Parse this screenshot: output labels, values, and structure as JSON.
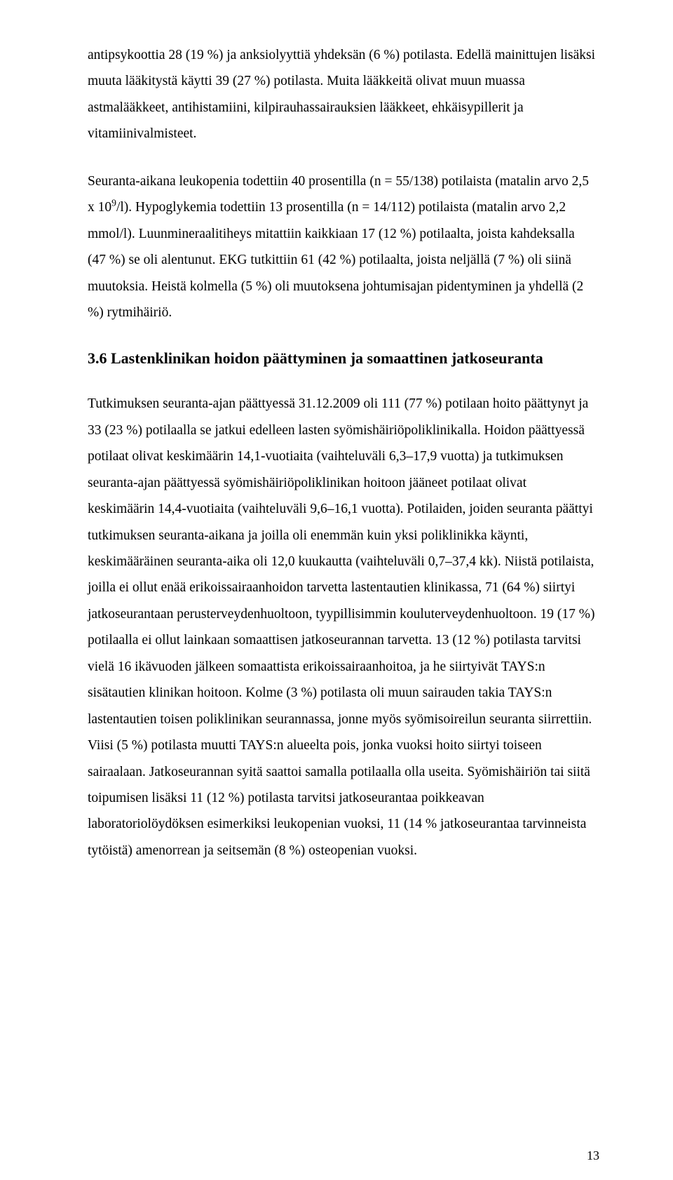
{
  "paragraphs": {
    "p1": "antipsykoottia 28 (19 %) ja anksiolyyttiä yhdeksän (6 %) potilasta. Edellä mainittujen lisäksi muuta lääkitystä käytti 39 (27 %) potilasta. Muita lääkkeitä olivat muun muassa astmalääkkeet, antihistamiini, kilpirauhassairauksien lääkkeet, ehkäisypillerit ja vitamiinivalmisteet.",
    "p2_before_sup": "Seuranta-aikana leukopenia todettiin 40 prosentilla (n = 55/138) potilaista (matalin arvo 2,5 x 10",
    "p2_sup": "9",
    "p2_after_sup": "/l). Hypoglykemia todettiin 13 prosentilla (n = 14/112) potilaista (matalin arvo 2,2 mmol/l). Luunmineraalitiheys mitattiin kaikkiaan 17 (12 %) potilaalta, joista kahdeksalla (47 %) se oli alentunut. EKG tutkittiin 61 (42 %) potilaalta, joista neljällä (7 %) oli siinä muutoksia. Heistä kolmella (5 %) oli muutoksena johtumisajan pidentyminen ja yhdellä (2 %) rytmihäiriö.",
    "p3": "Tutkimuksen seuranta-ajan päättyessä 31.12.2009 oli 111 (77 %) potilaan hoito päättynyt ja 33 (23 %) potilaalla se jatkui edelleen lasten syömishäiriöpoliklinikalla. Hoidon päättyessä potilaat olivat keskimäärin 14,1-vuotiaita (vaihteluväli 6,3–17,9 vuotta) ja tutkimuksen seuranta-ajan päättyessä syömishäiriöpoliklinikan hoitoon jääneet potilaat olivat keskimäärin 14,4-vuotiaita (vaihteluväli 9,6–16,1 vuotta). Potilaiden, joiden seuranta päättyi tutkimuksen seuranta-aikana ja joilla oli enemmän kuin yksi poliklinikka käynti, keskimääräinen seuranta-aika oli 12,0 kuukautta (vaihteluväli 0,7–37,4 kk).  Niistä potilaista, joilla ei ollut enää erikoissairaanhoidon tarvetta lastentautien klinikassa, 71 (64 %) siirtyi jatkoseurantaan perusterveydenhuoltoon, tyypillisimmin kouluterveydenhuoltoon. 19 (17 %) potilaalla ei ollut lainkaan somaattisen jatkoseurannan tarvetta. 13 (12 %) potilasta tarvitsi vielä 16 ikävuoden jälkeen somaattista erikoissairaanhoitoa, ja he siirtyivät TAYS:n sisätautien klinikan hoitoon. Kolme (3 %) potilasta oli muun sairauden takia TAYS:n lastentautien toisen poliklinikan seurannassa, jonne myös syömisoireilun seuranta siirrettiin. Viisi (5 %) potilasta muutti TAYS:n alueelta pois, jonka vuoksi hoito siirtyi toiseen sairaalaan. Jatkoseurannan syitä saattoi samalla potilaalla olla useita. Syömishäiriön tai siitä toipumisen lisäksi 11 (12 %) potilasta tarvitsi jatkoseurantaa poikkeavan laboratoriolöydöksen esimerkiksi leukopenian vuoksi, 11 (14 % jatkoseurantaa tarvinneista tytöistä) amenorrean ja seitsemän (8 %) osteopenian vuoksi."
  },
  "heading": "3.6 Lastenklinikan hoidon päättyminen ja somaattinen jatkoseuranta",
  "pageNumber": "13"
}
